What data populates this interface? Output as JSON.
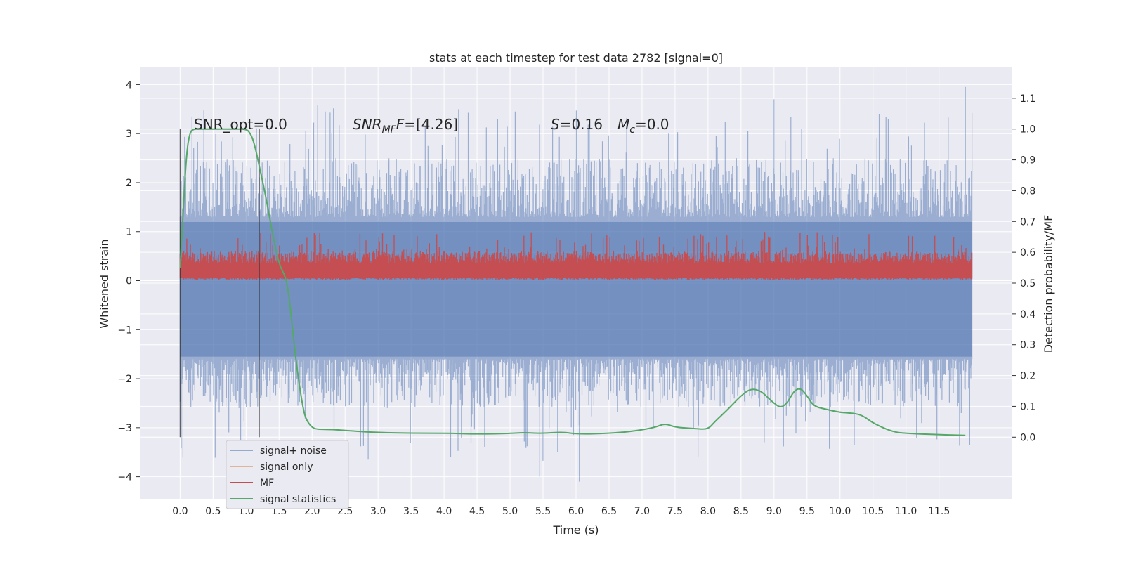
{
  "chart_data": {
    "type": "line",
    "title": "stats at each timestep for test data 2782 [signal=0]",
    "xlabel": "Time (s)",
    "ylabel_left": "Whitened strain",
    "ylabel_right": "Detection probability/MF",
    "xlim": [
      -0.6,
      12.6
    ],
    "ylim_left": [
      -4.45,
      4.35
    ],
    "ylim_right": [
      -0.2,
      1.2
    ],
    "x_ticks": [
      "0.0",
      "0.5",
      "1.0",
      "1.5",
      "2.0",
      "2.5",
      "3.0",
      "3.5",
      "4.0",
      "4.5",
      "5.0",
      "5.5",
      "6.0",
      "6.5",
      "7.0",
      "7.5",
      "8.0",
      "8.5",
      "9.0",
      "9.5",
      "10.0",
      "10.5",
      "11.0",
      "11.5"
    ],
    "y_ticks_left": [
      "−4",
      "−3",
      "−2",
      "−1",
      "0",
      "1",
      "2",
      "3",
      "4"
    ],
    "y_ticks_right": [
      "0.0",
      "0.1",
      "0.2",
      "0.3",
      "0.4",
      "0.5",
      "0.6",
      "0.7",
      "0.8",
      "0.9",
      "1.0",
      "1.1"
    ],
    "grid": true,
    "legend_position": "lower-left",
    "annotations": {
      "snr_opt": "SNR_opt=0.0",
      "snr_mf_main": "SNR",
      "snr_mf_sub": "MF",
      "snr_mf_tail": "=[4.26]",
      "s_label": "S",
      "s_value": "=0.16",
      "mc_main": "M",
      "mc_sub": "c",
      "mc_value": "=0.0"
    },
    "vertical_markers": [
      0.0,
      1.2
    ],
    "colors": {
      "signal_noise": "#4c72b0",
      "signal_only": "#dd8452",
      "mf": "#c44e52",
      "stats": "#55a868",
      "background": "#eaeaf2",
      "grid": "#ffffff"
    },
    "series": [
      {
        "name": "signal+ noise",
        "axis": "left",
        "x_range": [
          0.0,
          12.0
        ],
        "typical_range": [
          -1.7,
          1.3
        ],
        "max": 3.95,
        "min": -4.1
      },
      {
        "name": "signal only",
        "axis": "left",
        "values": []
      },
      {
        "name": "MF",
        "axis": "left",
        "x_range": [
          0.0,
          12.0
        ],
        "typical_range": [
          0.0,
          0.55
        ],
        "max": 1.0
      },
      {
        "name": "signal statistics",
        "axis": "right",
        "x": [
          0.0,
          0.05,
          0.1,
          0.15,
          0.2,
          0.3,
          0.5,
          0.8,
          1.0,
          1.05,
          1.1,
          1.15,
          1.2,
          1.3,
          1.4,
          1.5,
          1.6,
          1.65,
          1.7,
          1.75,
          1.8,
          1.85,
          1.9,
          2.0,
          2.1,
          2.3,
          2.6,
          3.0,
          3.5,
          4.0,
          4.5,
          5.0,
          5.2,
          5.5,
          5.8,
          6.0,
          6.5,
          6.9,
          7.2,
          7.35,
          7.5,
          7.8,
          8.0,
          8.1,
          8.3,
          8.5,
          8.65,
          8.8,
          8.9,
          9.0,
          9.1,
          9.2,
          9.3,
          9.4,
          9.5,
          9.6,
          9.8,
          10.0,
          10.2,
          10.35,
          10.5,
          10.8,
          11.0,
          11.5,
          11.9
        ],
        "y": [
          0.55,
          0.75,
          0.93,
          0.99,
          1.0,
          1.0,
          1.0,
          1.0,
          1.0,
          0.99,
          0.97,
          0.93,
          0.88,
          0.78,
          0.66,
          0.56,
          0.52,
          0.46,
          0.36,
          0.26,
          0.18,
          0.11,
          0.06,
          0.03,
          0.025,
          0.025,
          0.02,
          0.015,
          0.013,
          0.013,
          0.01,
          0.012,
          0.015,
          0.012,
          0.017,
          0.01,
          0.012,
          0.02,
          0.032,
          0.045,
          0.032,
          0.028,
          0.025,
          0.05,
          0.09,
          0.135,
          0.158,
          0.15,
          0.13,
          0.11,
          0.095,
          0.11,
          0.15,
          0.16,
          0.135,
          0.1,
          0.09,
          0.08,
          0.078,
          0.07,
          0.045,
          0.017,
          0.012,
          0.008,
          0.006
        ]
      }
    ]
  }
}
